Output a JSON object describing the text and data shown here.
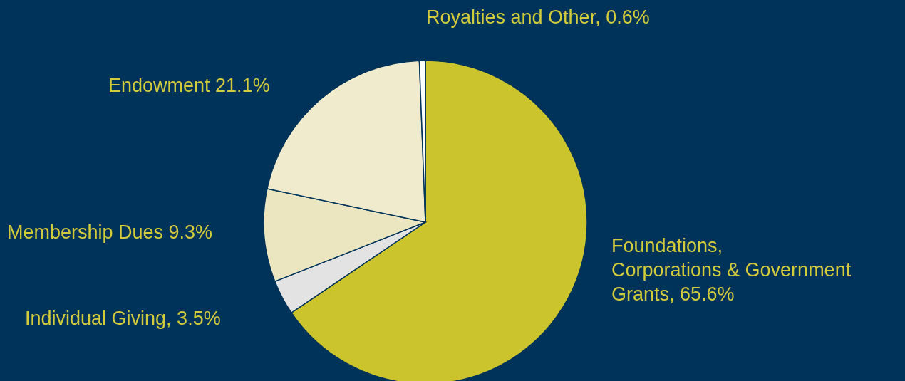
{
  "chart_data": {
    "type": "pie",
    "categories": [
      "Foundations, Corporations & Government Grants",
      "Individual Giving",
      "Membership Dues",
      "Endowment",
      "Royalties and Other"
    ],
    "values": [
      65.6,
      3.5,
      9.3,
      21.1,
      0.6
    ],
    "value_labels": [
      "65.6%",
      "3.5%",
      "9.3%",
      "21.1%",
      "0.6%"
    ],
    "colors": [
      "#cbc42d",
      "#e3e3e3",
      "#ebe6bf",
      "#f0ebcd",
      "#ffffff"
    ]
  }
}
